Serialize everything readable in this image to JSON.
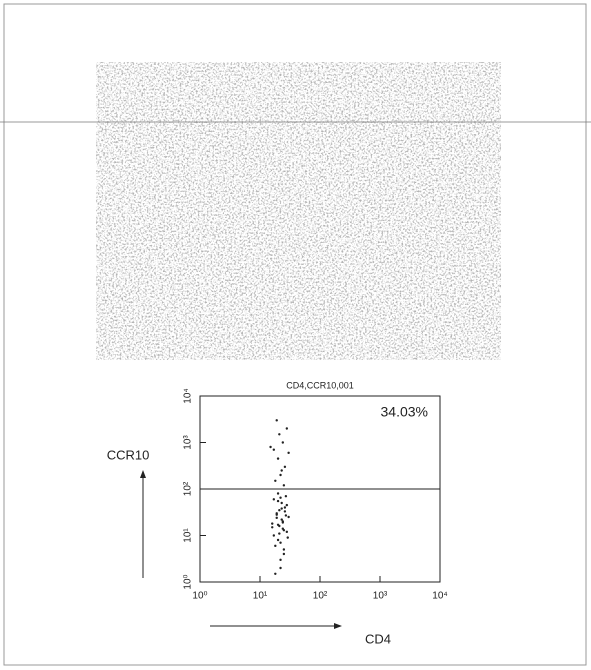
{
  "chart_data": {
    "type": "scatter",
    "title": "CD4,CCR10,001",
    "xlabel": "CD4",
    "ylabel": "CCR10",
    "annotation": "34.03%",
    "xlog": true,
    "ylog": true,
    "color": "#222222",
    "gate_y": 100,
    "xlim": [
      1,
      10000
    ],
    "ylim": [
      1,
      10000
    ],
    "xticks": [
      {
        "value": 1,
        "label": "10⁰"
      },
      {
        "value": 10,
        "label": "10¹"
      },
      {
        "value": 100,
        "label": "10²"
      },
      {
        "value": 1000,
        "label": "10³"
      },
      {
        "value": 10000,
        "label": "10⁴"
      }
    ],
    "yticks": [
      {
        "value": 1,
        "label": "10⁰"
      },
      {
        "value": 10,
        "label": "10¹"
      },
      {
        "value": 100,
        "label": "10²"
      },
      {
        "value": 1000,
        "label": "10³"
      },
      {
        "value": 10000,
        "label": "10⁴"
      }
    ],
    "x": [
      18,
      22,
      25,
      20,
      28,
      16,
      24,
      30,
      19,
      21,
      26,
      23,
      17,
      27,
      20,
      22,
      25,
      18,
      29,
      21,
      24,
      16,
      23,
      19,
      26,
      28,
      20,
      22,
      17,
      25,
      21,
      24,
      19,
      27,
      23,
      18,
      22,
      26,
      20,
      30,
      15,
      24,
      21,
      28,
      19,
      23,
      25,
      17,
      22,
      20
    ],
    "values": [
      1.5,
      3,
      5,
      8,
      12,
      15,
      20,
      25,
      30,
      35,
      40,
      50,
      60,
      70,
      80,
      2,
      4,
      6,
      9,
      11,
      14,
      18,
      22,
      28,
      33,
      45,
      55,
      65,
      10,
      13,
      16,
      19,
      24,
      27,
      38,
      150,
      200,
      300,
      450,
      600,
      800,
      1000,
      1500,
      2000,
      3000,
      250,
      120,
      700,
      7,
      17
    ]
  }
}
